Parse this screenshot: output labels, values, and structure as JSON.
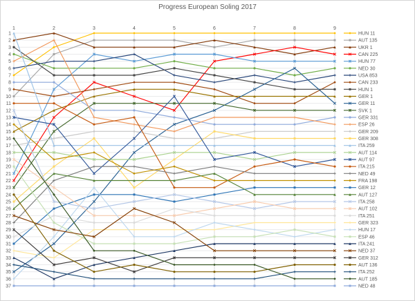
{
  "chart_data": {
    "type": "line",
    "title": "Progress European Soling 2017",
    "x": [
      "1",
      "2",
      "3",
      "4",
      "5",
      "6",
      "7",
      "8",
      "9"
    ],
    "xlabel": "",
    "ylabel": "",
    "ylim": [
      1,
      37
    ],
    "y_axis_reversed": true,
    "grid": true,
    "legend_position": "right",
    "series": [
      {
        "name": "HUN 11",
        "color": "#FFC000",
        "values": [
          7,
          3,
          1,
          1,
          1,
          1,
          1,
          1,
          1
        ]
      },
      {
        "name": "AUT 135",
        "color": "#A5A5A5",
        "values": [
          10,
          4,
          2,
          2,
          2,
          3,
          2,
          2,
          2
        ]
      },
      {
        "name": "UKR 1",
        "color": "#843C0C",
        "values": [
          2,
          1,
          3,
          3,
          3,
          2,
          3,
          4,
          3
        ]
      },
      {
        "name": "CAN 225",
        "color": "#FF0000",
        "values": [
          22,
          13,
          8,
          10,
          12,
          5,
          4,
          3,
          4
        ]
      },
      {
        "name": "HUN 77",
        "color": "#5B9BD5",
        "values": [
          21,
          9,
          4,
          5,
          4,
          4,
          5,
          5,
          5
        ]
      },
      {
        "name": "NED 30",
        "color": "#70AD47",
        "values": [
          4,
          6,
          6,
          6,
          5,
          6,
          6,
          7,
          6
        ]
      },
      {
        "name": "USA 853",
        "color": "#264478",
        "values": [
          6,
          5,
          5,
          4,
          7,
          8,
          7,
          8,
          7
        ]
      },
      {
        "name": "CAN 233",
        "color": "#9E480E",
        "values": [
          9,
          10,
          9,
          8,
          8,
          9,
          11,
          11,
          8
        ]
      },
      {
        "name": "HUN 1",
        "color": "#464646",
        "values": [
          3,
          7,
          7,
          7,
          6,
          7,
          8,
          9,
          9
        ]
      },
      {
        "name": "GER 1",
        "color": "#997300",
        "values": [
          15,
          12,
          10,
          9,
          9,
          10,
          10,
          10,
          10
        ]
      },
      {
        "name": "GER 11",
        "color": "#255E91",
        "values": [
          35,
          31,
          25,
          18,
          14,
          12,
          9,
          6,
          11
        ]
      },
      {
        "name": "SVK 1",
        "color": "#43682B",
        "values": [
          23,
          15,
          11,
          11,
          11,
          11,
          12,
          12,
          12
        ]
      },
      {
        "name": "GER 331",
        "color": "#8FAADC",
        "values": [
          8,
          8,
          12,
          12,
          13,
          14,
          14,
          14,
          13
        ]
      },
      {
        "name": "ESP 26",
        "color": "#F1975A",
        "values": [
          5,
          2,
          13,
          14,
          15,
          13,
          13,
          13,
          14
        ]
      },
      {
        "name": "GER 209",
        "color": "#C9C9C9",
        "values": [
          17,
          16,
          15,
          15,
          16,
          16,
          15,
          15,
          15
        ]
      },
      {
        "name": "GER 308",
        "color": "#FFD966",
        "values": [
          25,
          20,
          16,
          23,
          19,
          15,
          16,
          16,
          16
        ]
      },
      {
        "name": "ITA 259",
        "color": "#9DC3E6",
        "values": [
          1,
          17,
          17,
          17,
          17,
          17,
          17,
          17,
          17
        ]
      },
      {
        "name": "AUT 114",
        "color": "#A9D18E",
        "values": [
          18,
          18,
          19,
          19,
          18,
          18,
          19,
          18,
          18
        ]
      },
      {
        "name": "AUT 97",
        "color": "#2F5597",
        "values": [
          13,
          14,
          21,
          16,
          10,
          19,
          18,
          20,
          19
        ]
      },
      {
        "name": "ITA 215",
        "color": "#C55A11",
        "values": [
          11,
          11,
          14,
          13,
          23,
          23,
          20,
          19,
          20
        ]
      },
      {
        "name": "NED 49",
        "color": "#7B7B7B",
        "values": [
          28,
          22,
          20,
          20,
          21,
          20,
          21,
          21,
          21
        ]
      },
      {
        "name": "FRA 198",
        "color": "#BF8F00",
        "values": [
          14,
          19,
          18,
          21,
          20,
          22,
          22,
          22,
          22
        ]
      },
      {
        "name": "GER 12",
        "color": "#2E75B6",
        "values": [
          31,
          26,
          24,
          24,
          25,
          24,
          23,
          23,
          23
        ]
      },
      {
        "name": "AUT 127",
        "color": "#538135",
        "values": [
          26,
          21,
          22,
          22,
          22,
          21,
          24,
          24,
          24
        ]
      },
      {
        "name": "ITA 258",
        "color": "#B4C7E7",
        "values": [
          12,
          25,
          26,
          25,
          24,
          25,
          26,
          25,
          25
        ]
      },
      {
        "name": "AUT 102",
        "color": "#F8CBAD",
        "values": [
          19,
          23,
          27,
          27,
          27,
          26,
          25,
          26,
          26
        ]
      },
      {
        "name": "ITA 251",
        "color": "#DBDBDB",
        "values": [
          30,
          27,
          28,
          28,
          26,
          27,
          27,
          27,
          27
        ]
      },
      {
        "name": "GER 323",
        "color": "#FFE699",
        "values": [
          32,
          33,
          29,
          29,
          29,
          29,
          28,
          28,
          28
        ]
      },
      {
        "name": "HUN 17",
        "color": "#BDD7EE",
        "values": [
          36,
          30,
          23,
          30,
          30,
          28,
          29,
          30,
          29
        ]
      },
      {
        "name": "ESP 46",
        "color": "#C5E0B4",
        "values": [
          20,
          28,
          31,
          31,
          31,
          30,
          30,
          29,
          30
        ]
      },
      {
        "name": "ITA 241",
        "color": "#1F3864",
        "values": [
          33,
          36,
          34,
          33,
          32,
          31,
          31,
          31,
          31
        ]
      },
      {
        "name": "NED 37",
        "color": "#833C00",
        "values": [
          27,
          29,
          30,
          26,
          28,
          32,
          32,
          32,
          32
        ]
      },
      {
        "name": "GER 312",
        "color": "#3B3838",
        "values": [
          29,
          34,
          33,
          35,
          33,
          33,
          33,
          33,
          33
        ]
      },
      {
        "name": "AUT 136",
        "color": "#7F6000",
        "values": [
          24,
          32,
          35,
          34,
          35,
          35,
          35,
          34,
          34
        ]
      },
      {
        "name": "ITA 252",
        "color": "#1F4E79",
        "values": [
          34,
          35,
          36,
          36,
          36,
          36,
          36,
          35,
          35
        ]
      },
      {
        "name": "AUT 185",
        "color": "#375623",
        "values": [
          16,
          24,
          32,
          32,
          34,
          34,
          34,
          36,
          36
        ]
      },
      {
        "name": "NED 48",
        "color": "#8FAADC",
        "values": [
          37,
          37,
          37,
          37,
          37,
          37,
          37,
          37,
          37
        ]
      }
    ]
  }
}
